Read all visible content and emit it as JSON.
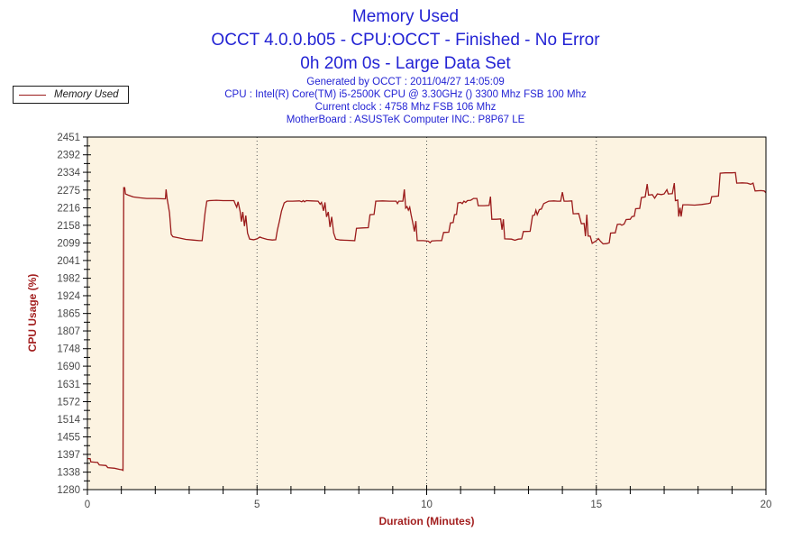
{
  "header": {
    "title_lines": [
      "Memory Used",
      "OCCT 4.0.0.b05 - CPU:OCCT - Finished - No Error",
      "0h 20m 0s - Large Data Set"
    ],
    "info_lines": [
      "Generated by OCCT : 2011/04/27 14:05:09",
      "CPU : Intel(R) Core(TM) i5-2500K CPU @ 3.30GHz () 3300 Mhz FSB 100 Mhz",
      "Current clock : 4758 Mhz FSB 106 Mhz",
      "MotherBoard : ASUSTeK Computer INC.: P8P67 LE"
    ]
  },
  "legend": {
    "label": "Memory Used"
  },
  "colors": {
    "title_blue": "#2323d4",
    "info_blue": "#2323d4",
    "series_red": "#9b1b1b",
    "axis_title_red": "#a32020",
    "tick_label_gray": "#4a4a4a",
    "plot_background": "#fcf3e1",
    "plot_border": "#000000",
    "gridline": "#555555",
    "page_background": "#ffffff"
  },
  "chart_data": {
    "type": "line",
    "title": "Memory Used",
    "xlabel": "Duration (Minutes)",
    "ylabel": "CPU Usage (%)",
    "xlim": [
      0,
      20
    ],
    "ylim": [
      1280,
      2451
    ],
    "x_major_ticks": [
      0,
      5,
      10,
      15,
      20
    ],
    "x_minor_tick_step": 1,
    "y_tick_labels": [
      2451,
      2392,
      2334,
      2275,
      2216,
      2158,
      2099,
      2041,
      1982,
      1924,
      1865,
      1807,
      1748,
      1690,
      1631,
      1572,
      1514,
      1455,
      1397,
      1338,
      1280
    ],
    "y_minor_ticks_between_labels": true,
    "gridlines_x": [
      5,
      10,
      15
    ],
    "grid_style": "dotted-vertical-only",
    "legend_position": "top-left-outside",
    "series": [
      {
        "name": "Memory Used",
        "points": [
          [
            0,
            1383
          ],
          [
            0.08,
            1383
          ],
          [
            0.1,
            1372
          ],
          [
            0.3,
            1370
          ],
          [
            0.35,
            1362
          ],
          [
            0.55,
            1360
          ],
          [
            0.6,
            1353
          ],
          [
            0.8,
            1351
          ],
          [
            0.95,
            1347
          ],
          [
            1.02,
            1346
          ],
          [
            1.05,
            1344
          ],
          [
            1.07,
            2283
          ],
          [
            1.1,
            2283
          ],
          [
            1.12,
            2262
          ],
          [
            1.2,
            2258
          ],
          [
            1.35,
            2252
          ],
          [
            1.55,
            2249
          ],
          [
            1.75,
            2247
          ],
          [
            2.0,
            2247
          ],
          [
            2.25,
            2246
          ],
          [
            2.3,
            2246
          ],
          [
            2.32,
            2277
          ],
          [
            2.35,
            2246
          ],
          [
            2.42,
            2200
          ],
          [
            2.47,
            2128
          ],
          [
            2.52,
            2120
          ],
          [
            2.7,
            2116
          ],
          [
            2.9,
            2111
          ],
          [
            3.1,
            2109
          ],
          [
            3.3,
            2107
          ],
          [
            3.38,
            2107
          ],
          [
            3.42,
            2150
          ],
          [
            3.47,
            2200
          ],
          [
            3.52,
            2238
          ],
          [
            3.6,
            2240
          ],
          [
            3.8,
            2241
          ],
          [
            4.0,
            2240
          ],
          [
            4.2,
            2240
          ],
          [
            4.32,
            2240
          ],
          [
            4.36,
            2228
          ],
          [
            4.4,
            2218
          ],
          [
            4.44,
            2236
          ],
          [
            4.5,
            2205
          ],
          [
            4.54,
            2170
          ],
          [
            4.58,
            2202
          ],
          [
            4.63,
            2155
          ],
          [
            4.67,
            2190
          ],
          [
            4.72,
            2132
          ],
          [
            4.78,
            2112
          ],
          [
            4.9,
            2110
          ],
          [
            5.0,
            2113
          ],
          [
            5.08,
            2119
          ],
          [
            5.15,
            2116
          ],
          [
            5.3,
            2111
          ],
          [
            5.45,
            2109
          ],
          [
            5.55,
            2110
          ],
          [
            5.6,
            2142
          ],
          [
            5.66,
            2172
          ],
          [
            5.72,
            2205
          ],
          [
            5.8,
            2232
          ],
          [
            5.88,
            2238
          ],
          [
            6.05,
            2238
          ],
          [
            6.25,
            2239
          ],
          [
            6.32,
            2236
          ],
          [
            6.36,
            2240
          ],
          [
            6.4,
            2236
          ],
          [
            6.45,
            2240
          ],
          [
            6.6,
            2239
          ],
          [
            6.8,
            2238
          ],
          [
            6.86,
            2228
          ],
          [
            6.9,
            2234
          ],
          [
            6.96,
            2206
          ],
          [
            7.0,
            2234
          ],
          [
            7.05,
            2186
          ],
          [
            7.1,
            2202
          ],
          [
            7.15,
            2152
          ],
          [
            7.2,
            2186
          ],
          [
            7.26,
            2132
          ],
          [
            7.32,
            2112
          ],
          [
            7.45,
            2109
          ],
          [
            7.65,
            2108
          ],
          [
            7.88,
            2107
          ],
          [
            7.93,
            2148
          ],
          [
            8.1,
            2149
          ],
          [
            8.28,
            2150
          ],
          [
            8.33,
            2193
          ],
          [
            8.45,
            2194
          ],
          [
            8.5,
            2238
          ],
          [
            8.7,
            2239
          ],
          [
            8.9,
            2238
          ],
          [
            9.1,
            2238
          ],
          [
            9.14,
            2230
          ],
          [
            9.18,
            2238
          ],
          [
            9.3,
            2238
          ],
          [
            9.34,
            2277
          ],
          [
            9.38,
            2215
          ],
          [
            9.42,
            2220
          ],
          [
            9.46,
            2208
          ],
          [
            9.5,
            2218
          ],
          [
            9.54,
            2193
          ],
          [
            9.58,
            2172
          ],
          [
            9.64,
            2137
          ],
          [
            9.68,
            2172
          ],
          [
            9.72,
            2107
          ],
          [
            9.9,
            2107
          ],
          [
            10.05,
            2105
          ],
          [
            10.1,
            2100
          ],
          [
            10.15,
            2106
          ],
          [
            10.3,
            2107
          ],
          [
            10.44,
            2107
          ],
          [
            10.5,
            2134
          ],
          [
            10.65,
            2135
          ],
          [
            10.7,
            2166
          ],
          [
            10.78,
            2167
          ],
          [
            10.82,
            2193
          ],
          [
            10.88,
            2194
          ],
          [
            10.92,
            2232
          ],
          [
            11.0,
            2234
          ],
          [
            11.05,
            2230
          ],
          [
            11.1,
            2238
          ],
          [
            11.15,
            2234
          ],
          [
            11.2,
            2240
          ],
          [
            11.3,
            2241
          ],
          [
            11.38,
            2247
          ],
          [
            11.48,
            2247
          ],
          [
            11.52,
            2223
          ],
          [
            11.7,
            2223
          ],
          [
            11.84,
            2224
          ],
          [
            11.88,
            2253
          ],
          [
            11.92,
            2178
          ],
          [
            12.05,
            2178
          ],
          [
            12.18,
            2179
          ],
          [
            12.22,
            2143
          ],
          [
            12.26,
            2178
          ],
          [
            12.3,
            2113
          ],
          [
            12.5,
            2112
          ],
          [
            12.6,
            2108
          ],
          [
            12.7,
            2112
          ],
          [
            12.8,
            2113
          ],
          [
            12.85,
            2137
          ],
          [
            13.05,
            2138
          ],
          [
            13.12,
            2190
          ],
          [
            13.18,
            2192
          ],
          [
            13.22,
            2208
          ],
          [
            13.26,
            2193
          ],
          [
            13.32,
            2210
          ],
          [
            13.38,
            2212
          ],
          [
            13.45,
            2230
          ],
          [
            13.6,
            2238
          ],
          [
            13.75,
            2239
          ],
          [
            13.85,
            2238
          ],
          [
            13.95,
            2238
          ],
          [
            14.0,
            2268
          ],
          [
            14.05,
            2238
          ],
          [
            14.15,
            2238
          ],
          [
            14.28,
            2239
          ],
          [
            14.32,
            2196
          ],
          [
            14.48,
            2197
          ],
          [
            14.56,
            2163
          ],
          [
            14.64,
            2164
          ],
          [
            14.68,
            2122
          ],
          [
            14.72,
            2193
          ],
          [
            14.76,
            2122
          ],
          [
            14.82,
            2122
          ],
          [
            14.88,
            2098
          ],
          [
            15.0,
            2107
          ],
          [
            15.06,
            2114
          ],
          [
            15.12,
            2105
          ],
          [
            15.2,
            2096
          ],
          [
            15.3,
            2097
          ],
          [
            15.38,
            2100
          ],
          [
            15.42,
            2132
          ],
          [
            15.56,
            2133
          ],
          [
            15.62,
            2161
          ],
          [
            15.7,
            2162
          ],
          [
            15.75,
            2158
          ],
          [
            15.82,
            2162
          ],
          [
            15.88,
            2177
          ],
          [
            16.0,
            2178
          ],
          [
            16.05,
            2187
          ],
          [
            16.12,
            2188
          ],
          [
            16.16,
            2213
          ],
          [
            16.28,
            2214
          ],
          [
            16.33,
            2250
          ],
          [
            16.44,
            2252
          ],
          [
            16.5,
            2295
          ],
          [
            16.54,
            2258
          ],
          [
            16.65,
            2260
          ],
          [
            16.72,
            2248
          ],
          [
            16.8,
            2262
          ],
          [
            16.92,
            2260
          ],
          [
            17.0,
            2262
          ],
          [
            17.08,
            2276
          ],
          [
            17.12,
            2262
          ],
          [
            17.24,
            2263
          ],
          [
            17.3,
            2298
          ],
          [
            17.33,
            2240
          ],
          [
            17.4,
            2242
          ],
          [
            17.43,
            2187
          ],
          [
            17.47,
            2216
          ],
          [
            17.5,
            2187
          ],
          [
            17.55,
            2226
          ],
          [
            17.7,
            2226
          ],
          [
            17.9,
            2225
          ],
          [
            18.1,
            2227
          ],
          [
            18.3,
            2230
          ],
          [
            18.36,
            2232
          ],
          [
            18.4,
            2253
          ],
          [
            18.6,
            2255
          ],
          [
            18.65,
            2331
          ],
          [
            18.8,
            2332
          ],
          [
            19.0,
            2332
          ],
          [
            19.1,
            2333
          ],
          [
            19.14,
            2298
          ],
          [
            19.3,
            2299
          ],
          [
            19.45,
            2298
          ],
          [
            19.55,
            2294
          ],
          [
            19.62,
            2298
          ],
          [
            19.68,
            2272
          ],
          [
            19.85,
            2273
          ],
          [
            19.95,
            2272
          ],
          [
            20,
            2266
          ]
        ]
      }
    ]
  }
}
